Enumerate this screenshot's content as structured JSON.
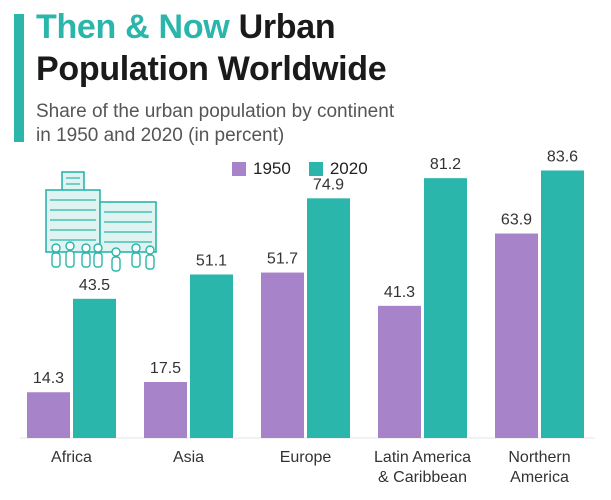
{
  "header": {
    "title_highlight": "Then & Now",
    "title_rest_line1": "Urban",
    "title_line2": "Population Worldwide",
    "subtitle_line1": "Share of the urban population by continent",
    "subtitle_line2": "in 1950 and 2020 (in percent)"
  },
  "colors": {
    "accent": "#2bb6ab",
    "series_1950": "#a784ca",
    "series_2020": "#2bb6ab"
  },
  "decor": {
    "icon": "city-building-people-icon"
  },
  "chart_data": {
    "type": "bar",
    "title": "Then & Now Urban Population Worldwide",
    "subtitle": "Share of the urban population by continent in 1950 and 2020 (in percent)",
    "categories": [
      [
        "Africa"
      ],
      [
        "Asia"
      ],
      [
        "Europe"
      ],
      [
        "Latin America",
        "& Caribbean"
      ],
      [
        "Northern",
        "America"
      ]
    ],
    "series": [
      {
        "name": "1950",
        "values": [
          14.3,
          17.5,
          51.7,
          41.3,
          63.9
        ],
        "color": "#a784ca"
      },
      {
        "name": "2020",
        "values": [
          43.5,
          51.1,
          74.9,
          81.2,
          83.6
        ],
        "color": "#2bb6ab"
      }
    ],
    "ylim": [
      0,
      100
    ],
    "grid": false,
    "legend_position": "top-center",
    "data_labels": true
  }
}
